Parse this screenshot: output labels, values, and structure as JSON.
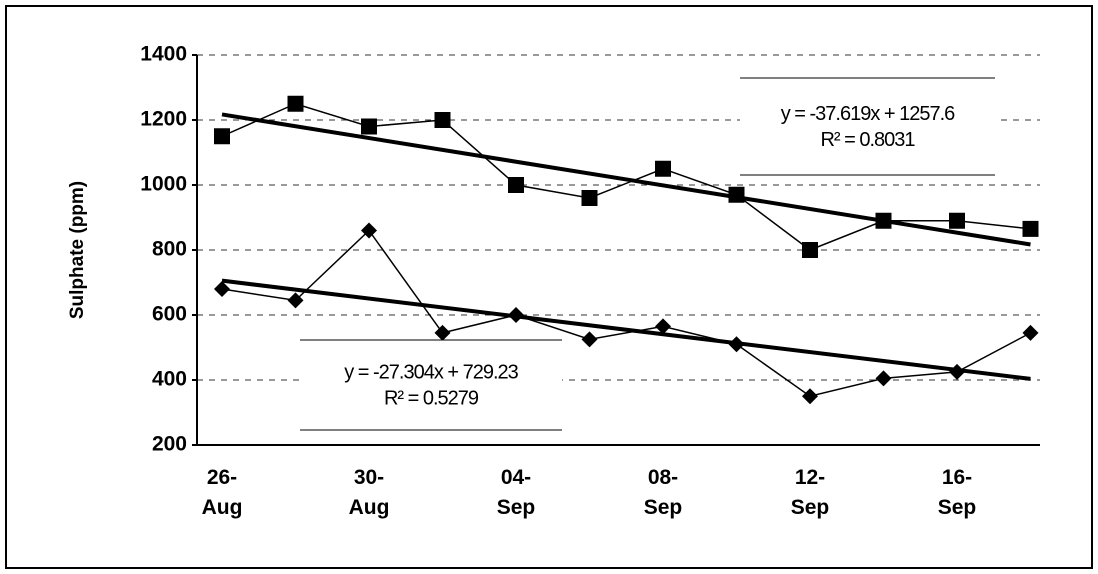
{
  "chart_data": {
    "type": "line",
    "y_label": "Sulphate (ppm)",
    "categories": [
      "26-\nAug",
      null,
      "30-\nAug",
      null,
      "04-\nSep",
      null,
      "08-\nSep",
      null,
      "12-\nSep",
      null,
      "16-\nSep",
      null
    ],
    "ylim": [
      200,
      1400
    ],
    "yticks": [
      200,
      400,
      600,
      800,
      1000,
      1200,
      1400
    ],
    "grid": true,
    "series": [
      {
        "marker": "square",
        "color": "#000000",
        "trendline": true,
        "values": [
          1150,
          1250,
          1180,
          1200,
          1000,
          960,
          1050,
          970,
          800,
          890,
          890,
          865
        ],
        "trend_label": [
          "y = -37.619x + 1257.6",
          "R² = 0.8031"
        ]
      },
      {
        "marker": "diamond",
        "color": "#000000",
        "trendline": true,
        "values": [
          680,
          645,
          860,
          545,
          600,
          525,
          565,
          510,
          350,
          405,
          425,
          545
        ],
        "trend_label": [
          "y = -27.304x + 729.23",
          "R² = 0.5279"
        ]
      }
    ]
  }
}
